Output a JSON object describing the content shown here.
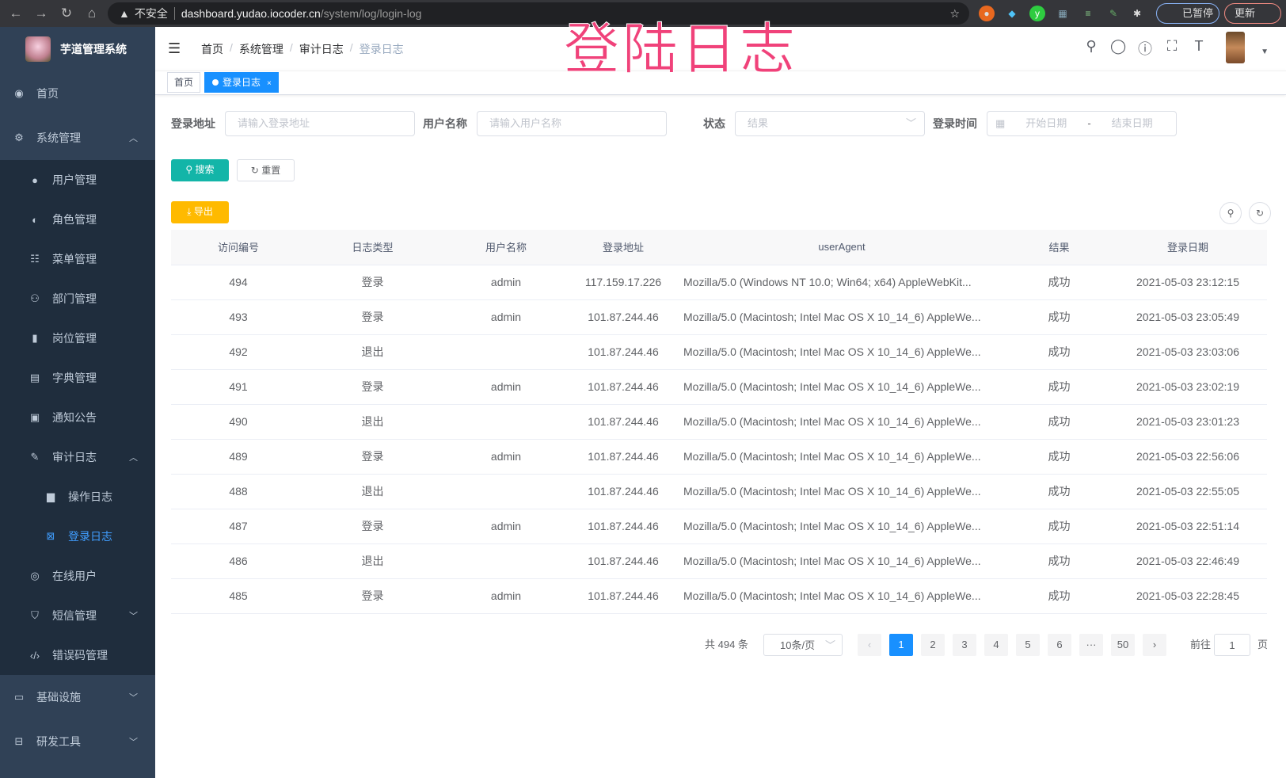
{
  "browser": {
    "security": "不安全",
    "host": "dashboard.yudao.iocoder.cn",
    "path": "/system/log/login-log",
    "paused_label": "已暂停",
    "update_label": "更新"
  },
  "overlay_title": "登陆日志",
  "sidebar": {
    "app_title": "芋道管理系统",
    "items": [
      {
        "label": "首页",
        "icon": "dashboard-icon"
      },
      {
        "label": "系统管理",
        "icon": "gear-icon",
        "expanded": true,
        "children": [
          {
            "label": "用户管理",
            "icon": "user-icon"
          },
          {
            "label": "角色管理",
            "icon": "role-icon"
          },
          {
            "label": "菜单管理",
            "icon": "menu-icon"
          },
          {
            "label": "部门管理",
            "icon": "tree-icon"
          },
          {
            "label": "岗位管理",
            "icon": "post-icon"
          },
          {
            "label": "字典管理",
            "icon": "dict-icon"
          },
          {
            "label": "通知公告",
            "icon": "message-icon"
          },
          {
            "label": "审计日志",
            "icon": "form-icon",
            "expanded": true,
            "children": [
              {
                "label": "操作日志",
                "icon": "log-icon"
              },
              {
                "label": "登录日志",
                "icon": "logininfor-icon",
                "active": true
              }
            ]
          },
          {
            "label": "在线用户",
            "icon": "online-icon"
          },
          {
            "label": "短信管理",
            "icon": "shield-icon"
          },
          {
            "label": "错误码管理",
            "icon": "code-icon"
          }
        ]
      },
      {
        "label": "基础设施",
        "icon": "monitor-icon"
      },
      {
        "label": "研发工具",
        "icon": "tool-icon"
      }
    ]
  },
  "header": {
    "breadcrumb": [
      "首页",
      "系统管理",
      "审计日志",
      "登录日志"
    ]
  },
  "tags": [
    {
      "label": "首页"
    },
    {
      "label": "登录日志",
      "active": true
    }
  ],
  "filters": {
    "address_label": "登录地址",
    "address_placeholder": "请输入登录地址",
    "username_label": "用户名称",
    "username_placeholder": "请输入用户名称",
    "status_label": "状态",
    "status_placeholder": "结果",
    "time_label": "登录时间",
    "start_placeholder": "开始日期",
    "range_sep": "-",
    "end_placeholder": "结束日期"
  },
  "buttons": {
    "search": "搜索",
    "reset": "重置",
    "export": "导出"
  },
  "colors": {
    "sidebar": "#304156",
    "submenu": "#1f2d3d",
    "active": "#409eff",
    "primary": "#1890ff",
    "search": "#13b5a8",
    "export": "#ffba00",
    "overlay": "#f0427a"
  },
  "table": {
    "columns": [
      "访问编号",
      "日志类型",
      "用户名称",
      "登录地址",
      "userAgent",
      "结果",
      "登录日期"
    ],
    "rows": [
      [
        "494",
        "登录",
        "admin",
        "117.159.17.226",
        "Mozilla/5.0 (Windows NT 10.0; Win64; x64) AppleWebKit...",
        "成功",
        "2021-05-03 23:12:15"
      ],
      [
        "493",
        "登录",
        "admin",
        "101.87.244.46",
        "Mozilla/5.0 (Macintosh; Intel Mac OS X 10_14_6) AppleWe...",
        "成功",
        "2021-05-03 23:05:49"
      ],
      [
        "492",
        "退出",
        "",
        "101.87.244.46",
        "Mozilla/5.0 (Macintosh; Intel Mac OS X 10_14_6) AppleWe...",
        "成功",
        "2021-05-03 23:03:06"
      ],
      [
        "491",
        "登录",
        "admin",
        "101.87.244.46",
        "Mozilla/5.0 (Macintosh; Intel Mac OS X 10_14_6) AppleWe...",
        "成功",
        "2021-05-03 23:02:19"
      ],
      [
        "490",
        "退出",
        "",
        "101.87.244.46",
        "Mozilla/5.0 (Macintosh; Intel Mac OS X 10_14_6) AppleWe...",
        "成功",
        "2021-05-03 23:01:23"
      ],
      [
        "489",
        "登录",
        "admin",
        "101.87.244.46",
        "Mozilla/5.0 (Macintosh; Intel Mac OS X 10_14_6) AppleWe...",
        "成功",
        "2021-05-03 22:56:06"
      ],
      [
        "488",
        "退出",
        "",
        "101.87.244.46",
        "Mozilla/5.0 (Macintosh; Intel Mac OS X 10_14_6) AppleWe...",
        "成功",
        "2021-05-03 22:55:05"
      ],
      [
        "487",
        "登录",
        "admin",
        "101.87.244.46",
        "Mozilla/5.0 (Macintosh; Intel Mac OS X 10_14_6) AppleWe...",
        "成功",
        "2021-05-03 22:51:14"
      ],
      [
        "486",
        "退出",
        "",
        "101.87.244.46",
        "Mozilla/5.0 (Macintosh; Intel Mac OS X 10_14_6) AppleWe...",
        "成功",
        "2021-05-03 22:46:49"
      ],
      [
        "485",
        "登录",
        "admin",
        "101.87.244.46",
        "Mozilla/5.0 (Macintosh; Intel Mac OS X 10_14_6) AppleWe...",
        "成功",
        "2021-05-03 22:28:45"
      ]
    ]
  },
  "pagination": {
    "total": "共 494 条",
    "page_size": "10条/页",
    "pages": [
      "1",
      "2",
      "3",
      "4",
      "5",
      "6",
      "···",
      "50"
    ],
    "current": "1",
    "goto_label": "前往",
    "goto_value": "1",
    "page_suffix": "页"
  }
}
